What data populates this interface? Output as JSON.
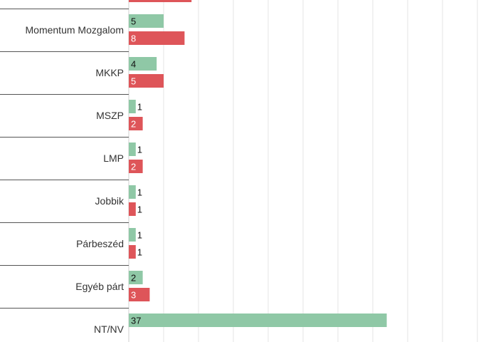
{
  "chart_data": {
    "type": "bar",
    "orientation": "horizontal",
    "categories": [
      "",
      "Momentum Mozgalom",
      "MKKP",
      "MSZP",
      "LMP",
      "Jobbik",
      "Párbeszéd",
      "Egyéb párt",
      "NT/NV"
    ],
    "series": [
      {
        "color": "#8fc8a6",
        "values": [
          null,
          5,
          4,
          1,
          1,
          1,
          1,
          2,
          37
        ]
      },
      {
        "color": "#de5559",
        "values": [
          9,
          8,
          5,
          2,
          2,
          1,
          1,
          3,
          null
        ]
      }
    ],
    "xlim": [
      0,
      52
    ],
    "grid": true,
    "legend": "none"
  }
}
